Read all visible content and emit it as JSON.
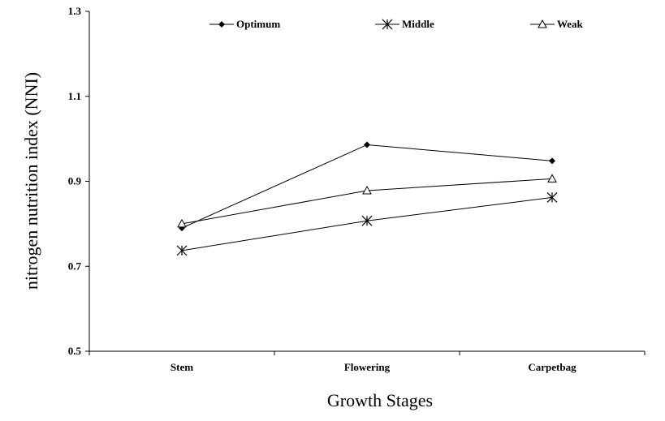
{
  "chart_data": {
    "type": "line",
    "categories": [
      "Stem",
      "Flowering",
      "Carpetbag"
    ],
    "series": [
      {
        "name": "Optimum",
        "marker": "diamond",
        "values": [
          0.79,
          0.986,
          0.948
        ]
      },
      {
        "name": "Middle",
        "marker": "asterisk",
        "values": [
          0.737,
          0.807,
          0.862
        ]
      },
      {
        "name": "Weak",
        "marker": "triangle-open",
        "values": [
          0.8,
          0.878,
          0.906
        ]
      }
    ],
    "title": "",
    "xlabel": "Growth Stages",
    "ylabel": "nitrogen nutrition index (NNI)",
    "ylim": [
      0.5,
      1.3
    ],
    "yticks": [
      "0.5",
      "0.7",
      "0.9",
      "1.1",
      "1.3"
    ],
    "grid": false,
    "legend_position": "top"
  }
}
